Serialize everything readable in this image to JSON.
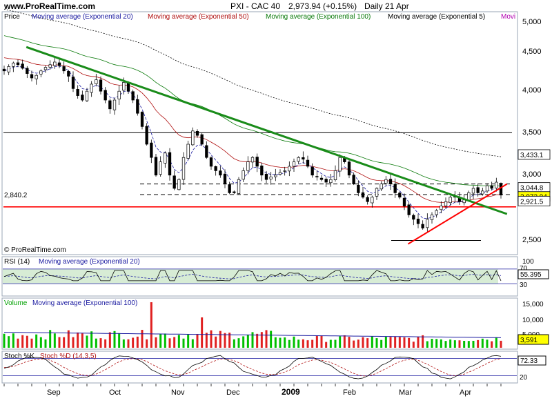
{
  "header": {
    "site": "www.ProRealTime.com",
    "title": "PXI - CAC 40",
    "last": "2,973.94 (+0.15%)",
    "period": "Daily  21 Apr"
  },
  "price_panel": {
    "legend": [
      {
        "label": "Price",
        "color": "#000000"
      },
      {
        "label": "Moving average (Exponential 20)",
        "color": "#1a1aa0"
      },
      {
        "label": "Moving average (Exponential 50)",
        "color": "#b01010"
      },
      {
        "label": "Moving average (Exponential 100)",
        "color": "#0a7a0a"
      },
      {
        "label": "Moving average (Exponential 5)",
        "color": "#000000"
      },
      {
        "label": "Movi",
        "color": "#b000b0"
      }
    ],
    "watermark": "© ProRealTime.com",
    "support_label": "2,840.2",
    "axis_ticks": [
      "5,000",
      "4,500",
      "4,000",
      "3,500",
      "3,000",
      "2,500"
    ],
    "value_tags": [
      {
        "text": "3,433.1",
        "value": 3433.1,
        "bg": "#ffffff",
        "fg": "#000000"
      },
      {
        "text": "3,044.8",
        "value": 3044.8,
        "bg": "#ffffff",
        "fg": "#000000"
      },
      {
        "text": "2,973.94",
        "value": 2973.94,
        "bg": "#ffff00",
        "fg": "#000000"
      },
      {
        "text": "2,921.5",
        "value": 2921.5,
        "bg": "#ffffff",
        "fg": "#000000"
      }
    ]
  },
  "rsi_panel": {
    "legend": [
      {
        "label": "RSI (14)",
        "color": "#000000"
      },
      {
        "label": "Moving average (Exponential 20)",
        "color": "#1a1aa0"
      }
    ],
    "axis_ticks": [
      "70",
      "30"
    ],
    "value_tag": "55.395",
    "top_tag": "100"
  },
  "volume_panel": {
    "legend": [
      {
        "label": "Volume",
        "color": "#00a000"
      },
      {
        "label": "Moving average (Exponential 100)",
        "color": "#1a1aa0"
      }
    ],
    "axis_ticks": [
      "15,000",
      "10,000",
      "5,000"
    ],
    "value_tag": "3,591"
  },
  "stoch_panel": {
    "legend": [
      {
        "label": "Stoch %K",
        "color": "#000000"
      },
      {
        "label": "Stoch %D (14,3,5)",
        "color": "#b01010"
      }
    ],
    "axis_ticks": [
      "80",
      "20"
    ],
    "value_tag": "72.33"
  },
  "x_axis": {
    "labels": [
      "Sep",
      "Oct",
      "Nov",
      "Dec",
      "2009",
      "Feb",
      "Mar",
      "Apr"
    ]
  },
  "chart_data": [
    {
      "type": "candlestick",
      "title": "PXI - CAC 40",
      "ylim": [
        2300,
        5050
      ],
      "y_scale": "linear",
      "x_range": [
        "2008-08-18",
        "2009-04-21"
      ],
      "close": [
        4380,
        4430,
        4470,
        4450,
        4410,
        4350,
        4300,
        4330,
        4380,
        4420,
        4450,
        4480,
        4440,
        4380,
        4320,
        4180,
        4100,
        4050,
        4150,
        4230,
        4280,
        4150,
        4050,
        3950,
        4050,
        4150,
        4250,
        4150,
        4050,
        3900,
        3750,
        3550,
        3400,
        3200,
        3350,
        3450,
        3200,
        3050,
        3150,
        3400,
        3550,
        3700,
        3650,
        3550,
        3400,
        3300,
        3250,
        3200,
        3100,
        3000,
        3000,
        3150,
        3250,
        3350,
        3400,
        3300,
        3200,
        3150,
        3180,
        3200,
        3230,
        3250,
        3300,
        3350,
        3400,
        3380,
        3300,
        3200,
        3180,
        3150,
        3120,
        3150,
        3250,
        3400,
        3350,
        3200,
        3100,
        3000,
        2950,
        2900,
        2950,
        3050,
        3100,
        3150,
        3100,
        3000,
        2950,
        2850,
        2750,
        2700,
        2650,
        2600,
        2700,
        2750,
        2800,
        2850,
        2900,
        2950,
        2950,
        2900,
        2920,
        3000,
        3050,
        3000,
        3020,
        3080,
        3050,
        3120,
        2974
      ],
      "horizontal_levels": [
        {
          "value": 3680,
          "color": "#000000",
          "style": "solid"
        },
        {
          "value": 3100,
          "color": "#000000",
          "style": "dashed"
        },
        {
          "value": 2980,
          "color": "#000000",
          "style": "dashed"
        },
        {
          "value": 2840.2,
          "color": "#ff0000",
          "style": "solid"
        },
        {
          "value": 2460,
          "color": "#000000",
          "style": "solid"
        }
      ],
      "trendlines": [
        {
          "color": "#1a8c1a",
          "from": {
            "date": "2008-08-29",
            "value": 4650
          },
          "to": {
            "date": "2009-04-24",
            "value": 2760
          }
        },
        {
          "color": "#ff0000",
          "from": {
            "date": "2009-03-06",
            "value": 2420
          },
          "to": {
            "date": "2009-04-24",
            "value": 3100
          }
        }
      ]
    },
    {
      "type": "line",
      "title": "RSI (14)",
      "ylim": [
        0,
        100
      ],
      "reference_lines": [
        70,
        30
      ],
      "last": 55.395
    },
    {
      "type": "bar",
      "title": "Volume",
      "ylim": [
        0,
        17500
      ],
      "last": 3591
    },
    {
      "type": "line",
      "title": "Stoch %K / Stoch %D (14,3,5)",
      "ylim": [
        0,
        100
      ],
      "reference_lines": [
        80,
        20
      ],
      "last": 72.33
    }
  ]
}
